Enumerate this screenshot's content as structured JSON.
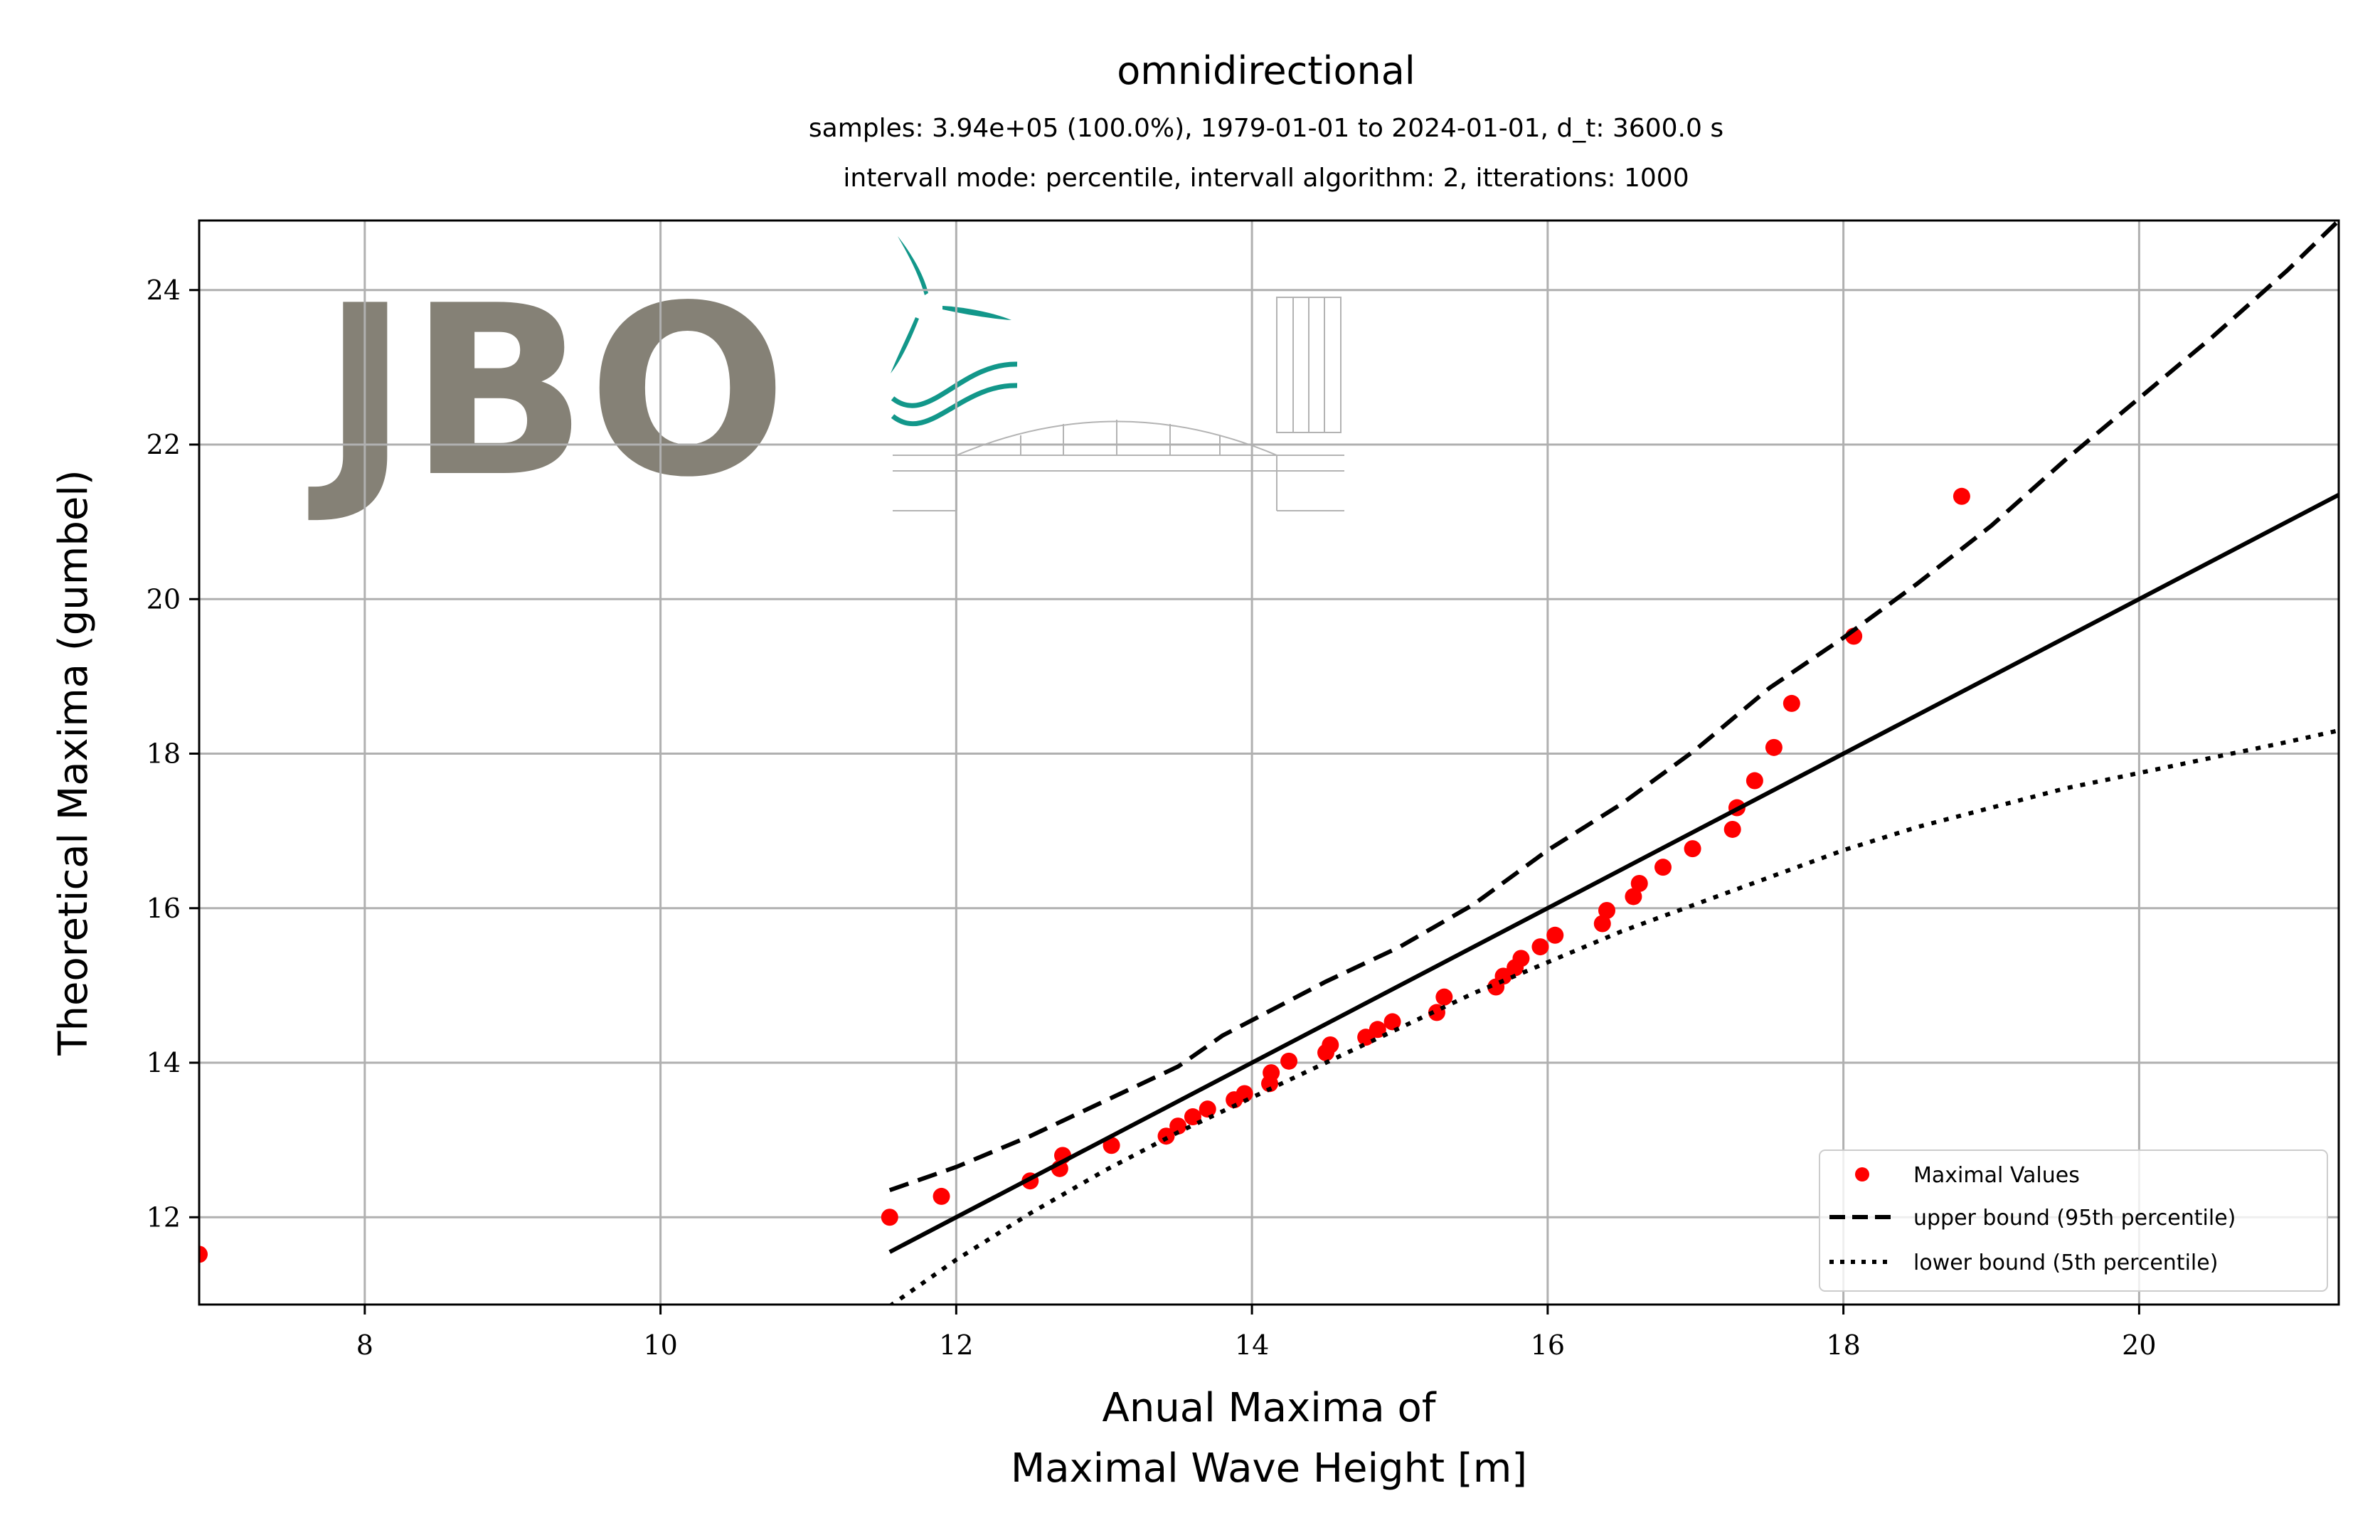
{
  "chart_data": {
    "type": "scatter",
    "title": "omnidirectional",
    "subtitle_lines": [
      "samples: 3.94e+05 (100.0%), 1979-01-01 to 2024-01-01, d_t: 3600.0 s",
      "intervall mode: percentile, intervall algorithm: 2, itterations: 1000"
    ],
    "xlabel_lines": [
      "Anual Maxima of",
      "Maximal Wave Height [m]"
    ],
    "ylabel": "Theoretical Maxima (gumbel)",
    "xlim": [
      6.88,
      21.35
    ],
    "ylim": [
      10.87,
      24.9
    ],
    "xticks": [
      8,
      10,
      12,
      14,
      16,
      18,
      20
    ],
    "yticks": [
      12,
      14,
      16,
      18,
      20,
      22,
      24
    ],
    "grid": true,
    "legend_position": "lower-right",
    "watermark": "JBO",
    "series": [
      {
        "name": "Maximal Values",
        "kind": "points",
        "color": "#ff0000",
        "x": [
          6.88,
          11.55,
          11.9,
          12.5,
          12.7,
          12.72,
          13.05,
          13.42,
          13.5,
          13.6,
          13.7,
          13.88,
          13.95,
          14.12,
          14.13,
          14.25,
          14.5,
          14.53,
          14.77,
          14.85,
          14.95,
          15.25,
          15.3,
          15.65,
          15.7,
          15.78,
          15.82,
          15.95,
          16.05,
          16.37,
          16.4,
          16.58,
          16.62,
          16.78,
          16.98,
          17.25,
          17.28,
          17.4,
          17.53,
          17.65,
          18.07,
          18.8
        ],
        "y": [
          11.52,
          12.0,
          12.27,
          12.47,
          12.63,
          12.8,
          12.93,
          13.05,
          13.18,
          13.3,
          13.4,
          13.52,
          13.6,
          13.73,
          13.87,
          14.02,
          14.13,
          14.23,
          14.33,
          14.43,
          14.53,
          14.65,
          14.85,
          14.98,
          15.12,
          15.23,
          15.35,
          15.5,
          15.65,
          15.8,
          15.97,
          16.15,
          16.32,
          16.53,
          16.77,
          17.02,
          17.3,
          17.65,
          18.08,
          18.65,
          19.52,
          21.33
        ]
      },
      {
        "name": "",
        "kind": "solid",
        "color": "#000000",
        "x": [
          11.55,
          21.35
        ],
        "y": [
          11.55,
          21.35
        ]
      },
      {
        "name": "upper bound (95th percentile)",
        "kind": "dashed",
        "color": "#000000",
        "x": [
          11.55,
          12.0,
          12.5,
          13.0,
          13.5,
          13.8,
          14.0,
          14.5,
          15.0,
          15.5,
          16.0,
          16.5,
          17.0,
          17.5,
          18.0,
          18.5,
          19.0,
          19.5,
          20.0,
          20.5,
          21.0,
          21.35
        ],
        "y": [
          12.35,
          12.65,
          13.05,
          13.5,
          13.95,
          14.35,
          14.55,
          15.05,
          15.5,
          16.05,
          16.75,
          17.35,
          18.05,
          18.85,
          19.5,
          20.2,
          20.95,
          21.8,
          22.6,
          23.4,
          24.25,
          24.9
        ]
      },
      {
        "name": "lower bound (5th percentile)",
        "kind": "dotted",
        "color": "#000000",
        "x": [
          11.55,
          12.0,
          12.5,
          13.0,
          13.5,
          14.0,
          14.5,
          15.0,
          15.5,
          16.0,
          16.5,
          17.0,
          17.5,
          18.0,
          18.5,
          19.0,
          19.5,
          20.0,
          20.5,
          21.0,
          21.35
        ],
        "y": [
          10.85,
          11.45,
          12.05,
          12.6,
          13.1,
          13.55,
          14.0,
          14.45,
          14.9,
          15.3,
          15.7,
          16.05,
          16.4,
          16.75,
          17.05,
          17.3,
          17.55,
          17.75,
          17.95,
          18.15,
          18.3
        ]
      }
    ]
  }
}
